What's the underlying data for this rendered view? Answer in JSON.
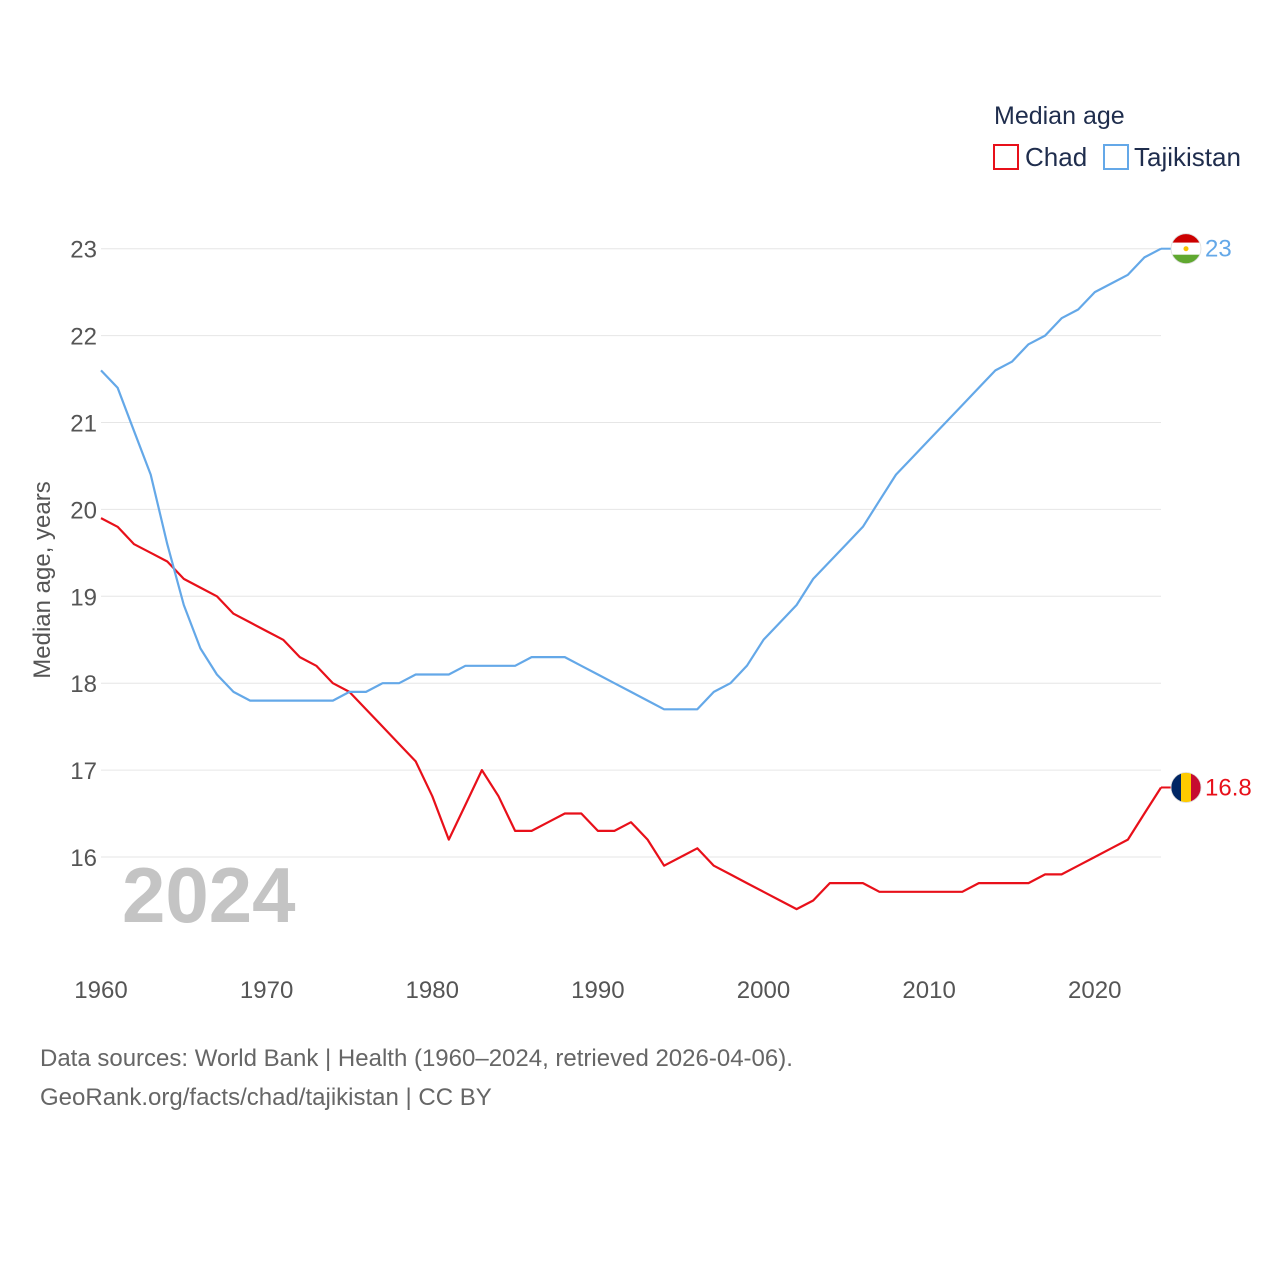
{
  "chart_data": {
    "type": "line",
    "title": "",
    "legend_title": "Median age",
    "ylabel": "Median age, years",
    "xlabel": "",
    "xlim": [
      1960,
      2024
    ],
    "ylim": [
      15,
      23.2
    ],
    "y_ticks": [
      16,
      17,
      18,
      19,
      20,
      21,
      22,
      23
    ],
    "x_ticks": [
      1960,
      1970,
      1980,
      1990,
      2000,
      2010,
      2020
    ],
    "grid": true,
    "legend_position": "top-right",
    "year_watermark": "2024",
    "x": [
      1960,
      1961,
      1962,
      1963,
      1964,
      1965,
      1966,
      1967,
      1968,
      1969,
      1970,
      1971,
      1972,
      1973,
      1974,
      1975,
      1976,
      1977,
      1978,
      1979,
      1980,
      1981,
      1982,
      1983,
      1984,
      1985,
      1986,
      1987,
      1988,
      1989,
      1990,
      1991,
      1992,
      1993,
      1994,
      1995,
      1996,
      1997,
      1998,
      1999,
      2000,
      2001,
      2002,
      2003,
      2004,
      2005,
      2006,
      2007,
      2008,
      2009,
      2010,
      2011,
      2012,
      2013,
      2014,
      2015,
      2016,
      2017,
      2018,
      2019,
      2020,
      2021,
      2022,
      2023,
      2024
    ],
    "series": [
      {
        "name": "Chad",
        "color": "#e8101a",
        "end_label": "16.8",
        "flag": "chad-flag",
        "values": [
          19.9,
          19.8,
          19.6,
          19.5,
          19.4,
          19.2,
          19.1,
          19.0,
          18.8,
          18.7,
          18.6,
          18.5,
          18.3,
          18.2,
          18.0,
          17.9,
          17.7,
          17.5,
          17.3,
          17.1,
          16.7,
          16.2,
          16.6,
          17.0,
          16.7,
          16.3,
          16.3,
          16.4,
          16.5,
          16.5,
          16.3,
          16.3,
          16.4,
          16.2,
          15.9,
          16.0,
          16.1,
          15.9,
          15.8,
          15.7,
          15.6,
          15.5,
          15.4,
          15.5,
          15.7,
          15.7,
          15.7,
          15.6,
          15.6,
          15.6,
          15.6,
          15.6,
          15.6,
          15.7,
          15.7,
          15.7,
          15.7,
          15.8,
          15.8,
          15.9,
          16.0,
          16.1,
          16.2,
          16.5,
          16.8
        ]
      },
      {
        "name": "Tajikistan",
        "color": "#64a8e8",
        "end_label": "23",
        "flag": "tajikistan-flag",
        "values": [
          21.6,
          21.4,
          20.9,
          20.4,
          19.6,
          18.9,
          18.4,
          18.1,
          17.9,
          17.8,
          17.8,
          17.8,
          17.8,
          17.8,
          17.8,
          17.9,
          17.9,
          18.0,
          18.0,
          18.1,
          18.1,
          18.1,
          18.2,
          18.2,
          18.2,
          18.2,
          18.3,
          18.3,
          18.3,
          18.2,
          18.1,
          18.0,
          17.9,
          17.8,
          17.7,
          17.7,
          17.7,
          17.9,
          18.0,
          18.2,
          18.5,
          18.7,
          18.9,
          19.2,
          19.4,
          19.6,
          19.8,
          20.1,
          20.4,
          20.6,
          20.8,
          21.0,
          21.2,
          21.4,
          21.6,
          21.7,
          21.9,
          22.0,
          22.2,
          22.3,
          22.5,
          22.6,
          22.7,
          22.9,
          23.0
        ]
      }
    ]
  },
  "footer": {
    "sources": "Data sources: World Bank | Health (1960–2024, retrieved 2026-04-06).",
    "link": "GeoRank.org/facts/chad/tajikistan | CC BY"
  }
}
